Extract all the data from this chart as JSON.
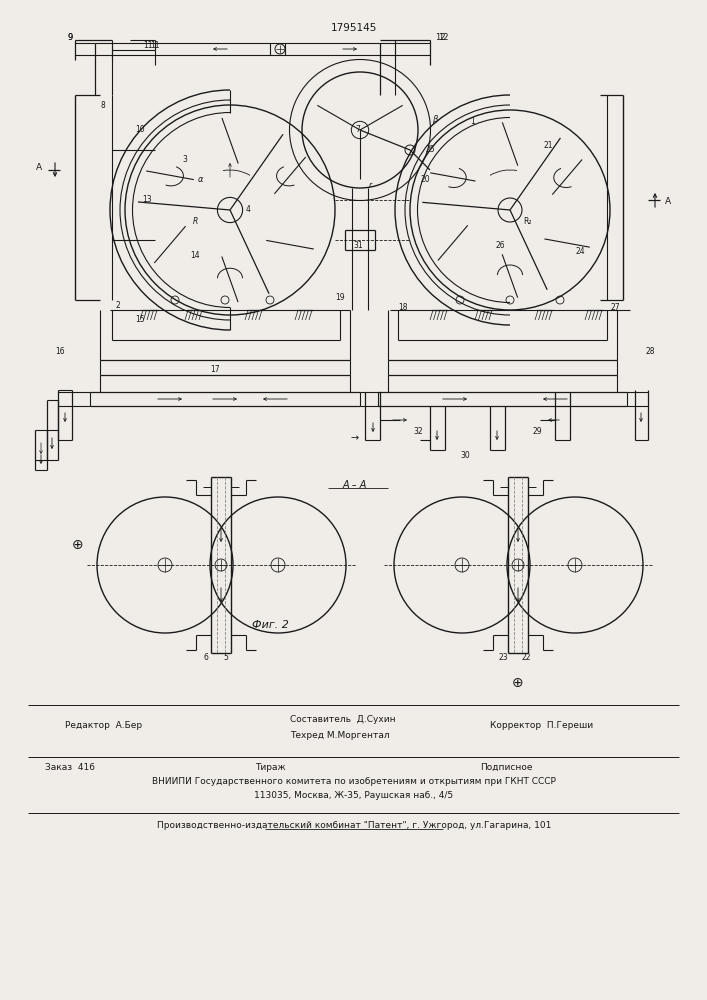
{
  "patent_number": "1795145",
  "fig_label": "Фиг. 2",
  "section_label": "А – А",
  "bg": "#f0ede8",
  "lc": "#1a1a1a",
  "editor_line": "Редактор  А.Бер",
  "composer_line1": "Составитель  Д.Сухин",
  "composer_line2": "Техред М.Моргентал",
  "corrector_line": "Корректор  П.Гереши",
  "order_line": "Заказ  416",
  "tiraj_line": "Тираж",
  "podpis_line": "Подписное",
  "vnipi_line": "ВНИИПИ Государственного комитета по изобретениям и открытиям при ГКНТ СССР",
  "address_line": "113035, Москва, Ж-35, Раушская наб., 4/5",
  "factory_line": "Производственно-издательский комбинат \"Патент\", г. Ужгород, ул.Гагарина, 101"
}
